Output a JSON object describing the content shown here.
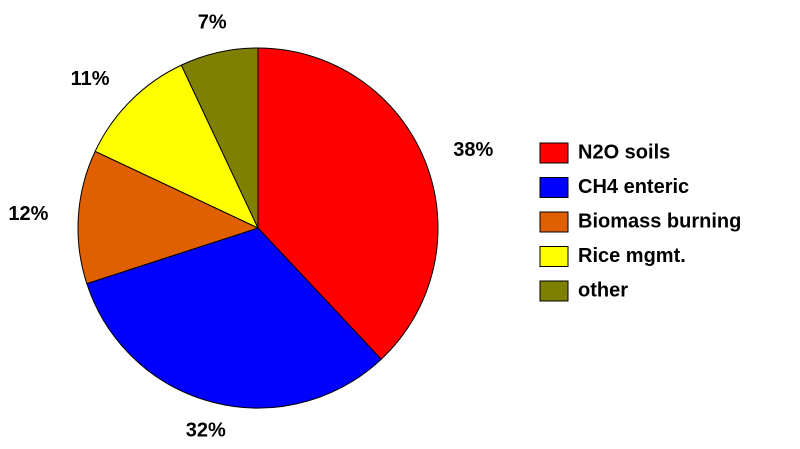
{
  "chart_data": {
    "type": "pie",
    "categories": [
      "N2O soils",
      "CH4 enteric",
      "Biomass burning",
      "Rice mgmt.",
      "other"
    ],
    "values": [
      38,
      32,
      12,
      11,
      7
    ],
    "value_labels": [
      "38%",
      "32%",
      "12%",
      "11%",
      "7%"
    ],
    "colors": [
      "#ff0000",
      "#0000ff",
      "#e06000",
      "#ffff00",
      "#808000"
    ],
    "legend": "right"
  }
}
